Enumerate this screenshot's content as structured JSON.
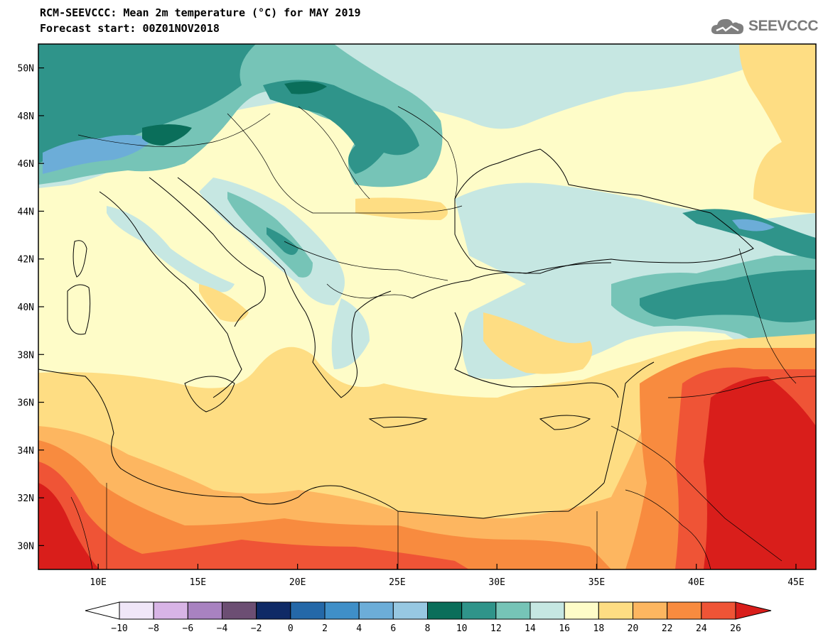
{
  "header": {
    "title_line1": "RCM-SEEVCCC: Mean 2m temperature (°C) for MAY 2019",
    "title_line2": "Forecast start: 00Z01NOV2018",
    "logo_text": "SEEVCCC"
  },
  "map": {
    "lat_labels": [
      "50N",
      "48N",
      "46N",
      "44N",
      "42N",
      "40N",
      "38N",
      "36N",
      "34N",
      "32N",
      "30N"
    ],
    "lon_labels": [
      "10E",
      "15E",
      "20E",
      "25E",
      "30E",
      "35E",
      "40E",
      "45E"
    ],
    "extent": {
      "lon_min": 7,
      "lon_max": 46,
      "lat_min": 29,
      "lat_max": 51
    }
  },
  "colorbar": {
    "labels": [
      "-10",
      "-8",
      "-6",
      "-4",
      "-2",
      "0",
      "2",
      "4",
      "6",
      "8",
      "10",
      "12",
      "14",
      "16",
      "18",
      "20",
      "22",
      "24",
      "26"
    ],
    "colors": [
      "#f0e6f8",
      "#d8b4e6",
      "#a882c0",
      "#6c4e73",
      "#0f2a66",
      "#2468a8",
      "#3f8fc8",
      "#6cadd8",
      "#97c8e2",
      "#0a6e5a",
      "#2f948a",
      "#76c4b7",
      "#c6e7e2",
      "#fefcc8",
      "#fedd83",
      "#fdb660",
      "#f88b3f",
      "#ef5436"
    ],
    "under_color": "#ffffff",
    "over_color": "#d91e1b"
  }
}
